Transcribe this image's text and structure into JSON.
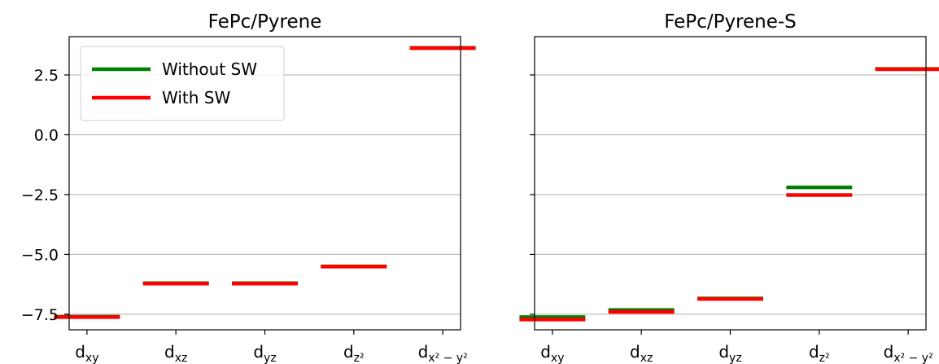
{
  "chart_data": [
    {
      "type": "level-diagram",
      "title": "FePc/Pyrene",
      "categories": [
        "d_xy",
        "d_xz",
        "d_yz",
        "d_z²",
        "d_x²−y²"
      ],
      "category_labels": [
        {
          "main": "d",
          "sub": "xy"
        },
        {
          "main": "d",
          "sub": "xz"
        },
        {
          "main": "d",
          "sub": "yz"
        },
        {
          "main": "d",
          "sub": "z²"
        },
        {
          "main": "d",
          "sub": "x² − y²"
        }
      ],
      "ylim": [
        -8.15,
        4.1
      ],
      "yticks": [
        -7.5,
        -5.0,
        -2.5,
        0.0,
        2.5
      ],
      "ytick_labels": [
        "−7.5",
        "−5.0",
        "−2.5",
        "0.0",
        "2.5"
      ],
      "grid": "horizontal",
      "legend": {
        "placement": "upper-left"
      },
      "series": [
        {
          "name": "Without SW",
          "color": "#008000",
          "values": [
            -7.6,
            -6.2,
            -6.2,
            -5.5,
            3.63
          ]
        },
        {
          "name": "With SW",
          "color": "#ff0000",
          "values": [
            -7.62,
            -6.22,
            -6.22,
            -5.51,
            3.62
          ]
        }
      ]
    },
    {
      "type": "level-diagram",
      "title": "FePc/Pyrene-S",
      "categories": [
        "d_xy",
        "d_xz",
        "d_yz",
        "d_z²",
        "d_x²−y²"
      ],
      "category_labels": [
        {
          "main": "d",
          "sub": "xy"
        },
        {
          "main": "d",
          "sub": "xz"
        },
        {
          "main": "d",
          "sub": "yz"
        },
        {
          "main": "d",
          "sub": "z²"
        },
        {
          "main": "d",
          "sub": "x² − y²"
        }
      ],
      "ylim": [
        -8.15,
        4.1
      ],
      "yticks": [
        -7.5,
        -5.0,
        -2.5,
        0.0,
        2.5
      ],
      "grid": "horizontal",
      "series": [
        {
          "name": "Without SW",
          "color": "#008000",
          "values": [
            -7.62,
            -7.32,
            -6.84,
            -2.2,
            2.75
          ]
        },
        {
          "name": "With SW",
          "color": "#ff0000",
          "values": [
            -7.72,
            -7.4,
            -6.86,
            -2.52,
            2.74
          ]
        }
      ]
    }
  ]
}
